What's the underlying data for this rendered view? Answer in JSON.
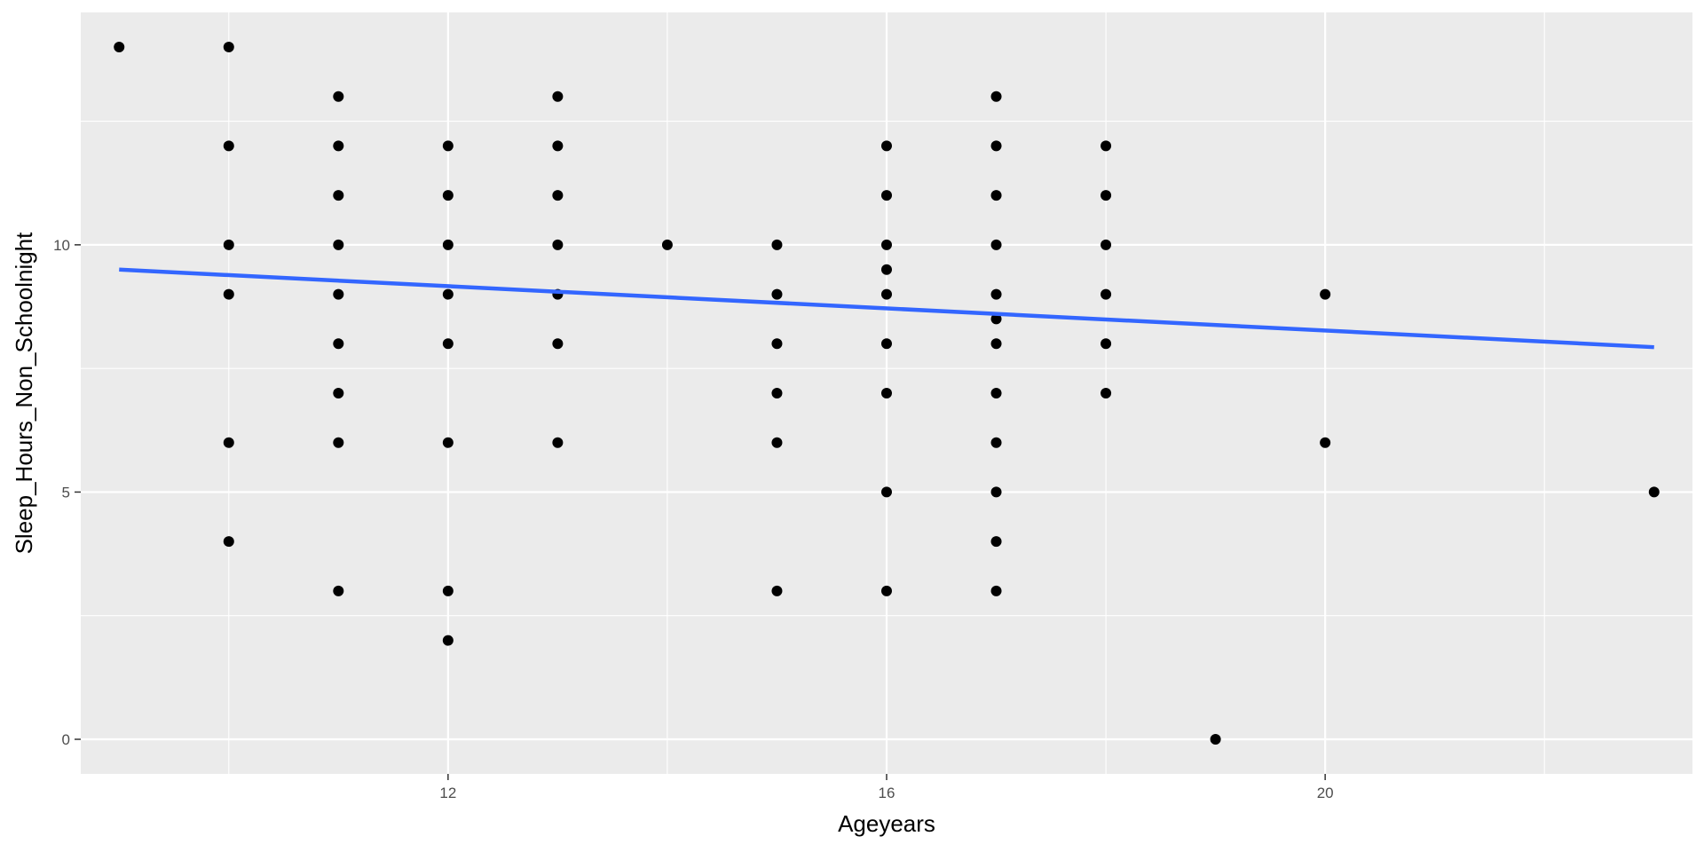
{
  "chart_data": {
    "type": "scatter",
    "title": "",
    "xlabel": "Ageyears",
    "ylabel": "Sleep_Hours_Non_Schoolnight",
    "xlim": [
      8.65,
      23.35
    ],
    "ylim": [
      -0.7,
      14.7
    ],
    "x_ticks": [
      12,
      16,
      20
    ],
    "x_tick_labels": [
      "12",
      "16",
      "20"
    ],
    "x_minor_ticks": [
      10,
      14,
      18,
      22
    ],
    "y_ticks": [
      0,
      5,
      10
    ],
    "y_tick_labels": [
      "0",
      "5",
      "10"
    ],
    "y_minor_ticks": [
      2.5,
      7.5,
      12.5
    ],
    "grid": true,
    "colors": {
      "panel_background": "#ebebeb",
      "grid_line": "#ffffff",
      "point": "#000000",
      "trend_line": "#3366ff"
    },
    "points": [
      {
        "x": 9,
        "y": 14
      },
      {
        "x": 10,
        "y": 14
      },
      {
        "x": 10,
        "y": 12
      },
      {
        "x": 10,
        "y": 10
      },
      {
        "x": 10,
        "y": 9
      },
      {
        "x": 10,
        "y": 6
      },
      {
        "x": 10,
        "y": 4
      },
      {
        "x": 11,
        "y": 13
      },
      {
        "x": 11,
        "y": 12
      },
      {
        "x": 11,
        "y": 11
      },
      {
        "x": 11,
        "y": 10
      },
      {
        "x": 11,
        "y": 9
      },
      {
        "x": 11,
        "y": 8
      },
      {
        "x": 11,
        "y": 7
      },
      {
        "x": 11,
        "y": 6
      },
      {
        "x": 11,
        "y": 3
      },
      {
        "x": 12,
        "y": 12
      },
      {
        "x": 12,
        "y": 11
      },
      {
        "x": 12,
        "y": 10
      },
      {
        "x": 12,
        "y": 9
      },
      {
        "x": 12,
        "y": 8
      },
      {
        "x": 12,
        "y": 6
      },
      {
        "x": 12,
        "y": 3
      },
      {
        "x": 12,
        "y": 2
      },
      {
        "x": 13,
        "y": 13
      },
      {
        "x": 13,
        "y": 12
      },
      {
        "x": 13,
        "y": 11
      },
      {
        "x": 13,
        "y": 10
      },
      {
        "x": 13,
        "y": 9
      },
      {
        "x": 13,
        "y": 8
      },
      {
        "x": 13,
        "y": 6
      },
      {
        "x": 14,
        "y": 10
      },
      {
        "x": 15,
        "y": 10
      },
      {
        "x": 15,
        "y": 9
      },
      {
        "x": 15,
        "y": 8
      },
      {
        "x": 15,
        "y": 7
      },
      {
        "x": 15,
        "y": 6
      },
      {
        "x": 15,
        "y": 3
      },
      {
        "x": 16,
        "y": 12
      },
      {
        "x": 16,
        "y": 11
      },
      {
        "x": 16,
        "y": 10
      },
      {
        "x": 16,
        "y": 9.5
      },
      {
        "x": 16,
        "y": 9
      },
      {
        "x": 16,
        "y": 8
      },
      {
        "x": 16,
        "y": 7
      },
      {
        "x": 16,
        "y": 5
      },
      {
        "x": 16,
        "y": 3
      },
      {
        "x": 17,
        "y": 13
      },
      {
        "x": 17,
        "y": 12
      },
      {
        "x": 17,
        "y": 11
      },
      {
        "x": 17,
        "y": 10
      },
      {
        "x": 17,
        "y": 9
      },
      {
        "x": 17,
        "y": 8.5
      },
      {
        "x": 17,
        "y": 8
      },
      {
        "x": 17,
        "y": 7
      },
      {
        "x": 17,
        "y": 6
      },
      {
        "x": 17,
        "y": 5
      },
      {
        "x": 17,
        "y": 4
      },
      {
        "x": 17,
        "y": 3
      },
      {
        "x": 18,
        "y": 12
      },
      {
        "x": 18,
        "y": 11
      },
      {
        "x": 18,
        "y": 10
      },
      {
        "x": 18,
        "y": 9
      },
      {
        "x": 18,
        "y": 8
      },
      {
        "x": 18,
        "y": 7
      },
      {
        "x": 19,
        "y": 0
      },
      {
        "x": 20,
        "y": 9
      },
      {
        "x": 20,
        "y": 6
      },
      {
        "x": 23,
        "y": 5
      }
    ],
    "trend_line": {
      "x": [
        9,
        23
      ],
      "y": [
        9.5,
        7.93
      ]
    }
  }
}
